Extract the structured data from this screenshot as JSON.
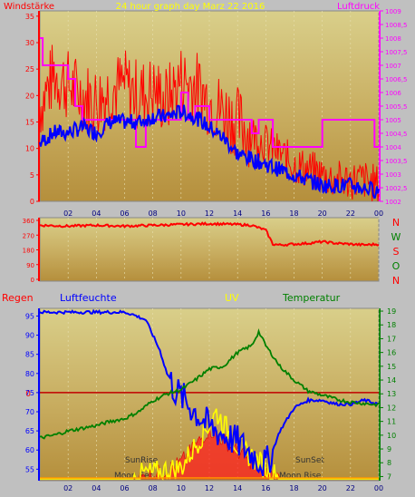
{
  "title": "24 hour graph day   Marz 22 2016",
  "colors": {
    "bg": "#c0c0c0",
    "wind_avg": "#0000ff",
    "gust": "#ff0000",
    "pressure": "#ff00ff",
    "direction": "#ff0000",
    "humidity": "#0000ff",
    "temperature": "#008000",
    "uv": "#ffff00",
    "solar": "#ff2020",
    "zero_line": "#c00000",
    "grid": "#e8e0b0"
  },
  "hour_ticks": [
    "02",
    "04",
    "06",
    "08",
    "10",
    "12",
    "14",
    "16",
    "18",
    "20",
    "22",
    "00"
  ],
  "chart_data": [
    {
      "type": "line",
      "name": "wind",
      "left_label": "Windstärke",
      "right_label": "Luftdruck",
      "x_range_hours": [
        0,
        24
      ],
      "ylim_left": [
        0,
        36
      ],
      "yticks_left": [
        "0",
        "5",
        "10",
        "15",
        "20",
        "25",
        "30",
        "35"
      ],
      "ylim_right": [
        1002,
        1009
      ],
      "yticks_right": [
        "1002",
        "1002,5",
        "1003",
        "1003,5",
        "1004",
        "1004,5",
        "1005",
        "1005,5",
        "1006",
        "1006,5",
        "1007",
        "1007,5",
        "1008",
        "1008,5",
        "1009"
      ],
      "series": [
        {
          "key": "gust",
          "x": [
            0,
            1,
            2,
            3,
            4,
            5,
            6,
            7,
            8,
            9,
            10,
            11,
            12,
            13,
            14,
            15,
            16,
            17,
            18,
            19,
            20,
            21,
            22,
            23,
            24
          ],
          "values": [
            18,
            24,
            22,
            20,
            19,
            21,
            22,
            20,
            21,
            19,
            23,
            22,
            19,
            17,
            15,
            13,
            11,
            9,
            7,
            6,
            5,
            4,
            4,
            4,
            3
          ]
        },
        {
          "key": "wind_avg",
          "x": [
            0,
            1,
            2,
            3,
            4,
            5,
            6,
            7,
            8,
            9,
            10,
            11,
            12,
            13,
            14,
            15,
            16,
            17,
            18,
            19,
            20,
            21,
            22,
            23,
            24
          ],
          "values": [
            11,
            13,
            13,
            14,
            13,
            15,
            15,
            15,
            16,
            16,
            17,
            16,
            14,
            12,
            9,
            8,
            7,
            6,
            5,
            4,
            3,
            3,
            3,
            2.5,
            2
          ]
        },
        {
          "key": "pressure",
          "x": [
            0,
            0.2,
            1.8,
            2,
            2.5,
            3,
            6.5,
            6.8,
            7.5,
            9,
            10,
            10.5,
            11,
            12,
            14,
            15,
            15.5,
            16.5,
            17,
            17.5,
            19.5,
            20,
            21,
            23.7,
            24
          ],
          "values": [
            1008,
            1007,
            1007,
            1006.5,
            1005.5,
            1005,
            1005,
            1004,
            1005,
            1005,
            1006,
            1005,
            1005.5,
            1005,
            1005,
            1004.5,
            1005,
            1004,
            1004,
            1004,
            1004,
            1005,
            1005,
            1004,
            1004
          ]
        }
      ]
    },
    {
      "type": "line",
      "name": "direction",
      "ylim": [
        0,
        360
      ],
      "yticks": [
        "0",
        "90",
        "180",
        "270",
        "360"
      ],
      "compass": [
        "N",
        "W",
        "S",
        "O",
        "N"
      ],
      "series": [
        {
          "key": "direction",
          "x": [
            0,
            2,
            4,
            6,
            8,
            10,
            12,
            14,
            15,
            16,
            16.5,
            17,
            18,
            19,
            20,
            21,
            22,
            23,
            24
          ],
          "values": [
            330,
            325,
            330,
            325,
            330,
            335,
            340,
            335,
            330,
            300,
            215,
            210,
            215,
            220,
            230,
            220,
            215,
            210,
            215
          ]
        }
      ]
    },
    {
      "type": "line",
      "name": "weather",
      "labels": {
        "rain": "Regen",
        "humidity": "Luftfeuchte",
        "uv": "UV",
        "temperature": "Temperatur",
        "sunrise": "SunRise",
        "sunset": "SunSet",
        "moonset": "Moon Set",
        "moonrise": "Moon Rise"
      },
      "rain_marker": "0",
      "ylim_humidity": [
        52,
        97
      ],
      "yticks_humidity": [
        "55",
        "60",
        "65",
        "70",
        "75",
        "80",
        "85",
        "90",
        "95"
      ],
      "ylim_temperature": [
        6.7,
        19.2
      ],
      "yticks_temperature": [
        "7",
        "8",
        "9",
        "10",
        "11",
        "12",
        "13",
        "14",
        "15",
        "16",
        "17",
        "18",
        "19"
      ],
      "series": [
        {
          "key": "humidity",
          "x": [
            0,
            6,
            6.5,
            7.5,
            8,
            8.5,
            9,
            9.5,
            10,
            11,
            12,
            13,
            14,
            15,
            16,
            16.5,
            17,
            18,
            19,
            20,
            21,
            22,
            23,
            24
          ],
          "values": [
            96,
            96,
            95.5,
            94,
            90,
            86,
            80,
            76,
            74,
            70,
            66,
            64,
            62,
            59,
            56,
            60,
            65,
            71,
            73,
            73,
            72,
            72,
            73,
            72
          ]
        },
        {
          "key": "temperature",
          "x": [
            0,
            1,
            2,
            3,
            4,
            5,
            6,
            7,
            8,
            9,
            10,
            11,
            12,
            13,
            14,
            15,
            15.5,
            16,
            17,
            18,
            19,
            20,
            21,
            22,
            23,
            24
          ],
          "values": [
            9.8,
            10,
            10.3,
            10.5,
            10.7,
            11,
            11.2,
            11.7,
            12.5,
            13,
            13.3,
            14,
            14.8,
            15,
            16,
            16.5,
            17.5,
            16.5,
            15,
            14,
            13.2,
            12.9,
            12.6,
            12.4,
            12.3,
            12.2
          ]
        },
        {
          "key": "uv",
          "x": [
            0,
            6.5,
            7,
            7.5,
            8,
            9,
            10,
            10.5,
            11,
            11.5,
            12,
            12.5,
            13,
            13.5,
            14,
            15,
            16,
            16.5,
            17,
            24
          ],
          "values": [
            0,
            0,
            0.3,
            0.5,
            0.5,
            0.8,
            1,
            2,
            3,
            4,
            5,
            6,
            5,
            4,
            3,
            2,
            1,
            0.5,
            0,
            0
          ]
        },
        {
          "key": "solar",
          "x": [
            0,
            7,
            8,
            9,
            10,
            11,
            12,
            13,
            14,
            15,
            16,
            17,
            24
          ],
          "values": [
            0,
            0,
            0.4,
            0.8,
            1.5,
            3,
            4.5,
            3.5,
            2.5,
            1.5,
            0.6,
            0,
            0
          ]
        }
      ]
    }
  ]
}
